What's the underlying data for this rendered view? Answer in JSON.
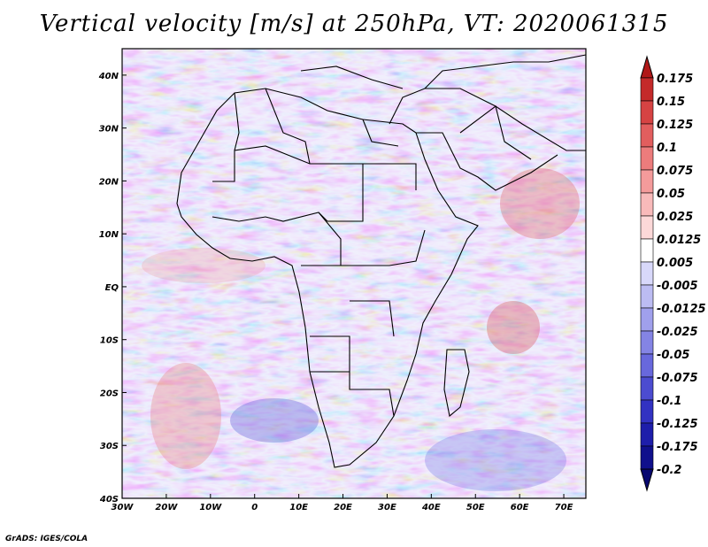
{
  "title": "Vertical velocity [m/s] at 250hPa, VT: 2020061315",
  "credit": "GrADS: IGES/COLA",
  "map": {
    "lon_range": [
      -30,
      75
    ],
    "lat_range": [
      -40,
      45
    ],
    "x_ticks": [
      "30W",
      "20W",
      "10W",
      "0",
      "10E",
      "20E",
      "30E",
      "40E",
      "50E",
      "60E",
      "70E"
    ],
    "x_tick_lons": [
      -30,
      -20,
      -10,
      0,
      10,
      20,
      30,
      40,
      50,
      60,
      70
    ],
    "y_ticks": [
      "40S",
      "30S",
      "20S",
      "10S",
      "EQ",
      "10N",
      "20N",
      "30N",
      "40N"
    ],
    "y_tick_lats": [
      -40,
      -30,
      -20,
      -10,
      0,
      10,
      20,
      30,
      40
    ]
  },
  "colorbar": {
    "labels": [
      "0.175",
      "0.15",
      "0.125",
      "0.1",
      "0.075",
      "0.05",
      "0.025",
      "0.0125",
      "0.005",
      "-0.005",
      "-0.0125",
      "-0.025",
      "-0.05",
      "-0.075",
      "-0.1",
      "-0.125",
      "-0.175",
      "-0.2"
    ],
    "colors": [
      "#b01818",
      "#c42a2a",
      "#d64343",
      "#e25e5e",
      "#ec7c7c",
      "#f49b9b",
      "#f8baba",
      "#fcd8d8",
      "#ffffff",
      "#d8d8fa",
      "#bcbcf2",
      "#a0a0ec",
      "#8484e4",
      "#6868dc",
      "#4c4cd0",
      "#3232c2",
      "#1e1eaa",
      "#10108c",
      "#080870"
    ]
  }
}
